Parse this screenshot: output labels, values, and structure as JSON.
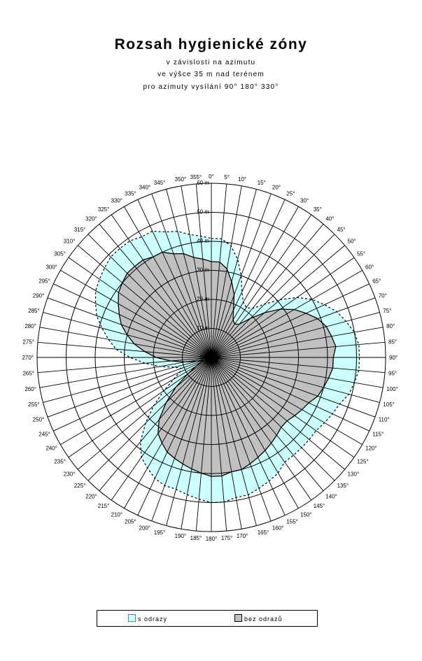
{
  "header": {
    "title": "Rozsah hygienické zóny",
    "subtitle_1": "v závislosti na azimutu",
    "subtitle_2": "ve výšce 35 m nad terénem",
    "subtitle_3": "pro azimuty vysílání 90° 180° 330°"
  },
  "legend": {
    "series_1": "s odrazy",
    "series_2": "bez odrazů"
  },
  "colors": {
    "s_odrazy_fill": "#ccffff",
    "bez_odrazu_fill": "#c0c0c0",
    "lines": "#000000"
  },
  "chart_data": {
    "type": "radar",
    "title": "Rozsah hygienické zóny",
    "radial_ticks": [
      "0 m",
      "10 m",
      "20 m",
      "30 m",
      "40 m",
      "50 m",
      "60 m"
    ],
    "rlim": [
      0,
      60
    ],
    "grid": true,
    "legend_position": "bottom",
    "azimuth_labels": [
      "0°",
      "5°",
      "10°",
      "15°",
      "20°",
      "25°",
      "30°",
      "35°",
      "40°",
      "45°",
      "50°",
      "55°",
      "60°",
      "65°",
      "70°",
      "75°",
      "80°",
      "85°",
      "90°",
      "95°",
      "100°",
      "105°",
      "110°",
      "115°",
      "120°",
      "125°",
      "130°",
      "135°",
      "140°",
      "145°",
      "150°",
      "155°",
      "160°",
      "165°",
      "170°",
      "175°",
      "180°",
      "185°",
      "190°",
      "195°",
      "200°",
      "205°",
      "210°",
      "215°",
      "220°",
      "225°",
      "230°",
      "235°",
      "240°",
      "245°",
      "250°",
      "255°",
      "260°",
      "265°",
      "270°",
      "275°",
      "280°",
      "285°",
      "290°",
      "295°",
      "300°",
      "305°",
      "310°",
      "315°",
      "320°",
      "325°",
      "330°",
      "335°",
      "340°",
      "345°",
      "350°",
      "355°"
    ],
    "azimuths": [
      0,
      5,
      10,
      15,
      20,
      25,
      30,
      35,
      40,
      45,
      50,
      55,
      60,
      65,
      70,
      75,
      80,
      85,
      90,
      95,
      100,
      105,
      110,
      115,
      120,
      125,
      130,
      135,
      140,
      145,
      150,
      155,
      160,
      165,
      170,
      175,
      180,
      185,
      190,
      195,
      200,
      205,
      210,
      215,
      220,
      225,
      230,
      235,
      240,
      245,
      250,
      255,
      260,
      265,
      270,
      275,
      280,
      285,
      290,
      295,
      300,
      305,
      310,
      315,
      320,
      325,
      330,
      335,
      340,
      345,
      350,
      355
    ],
    "series": [
      {
        "name": "s odrazy",
        "values": [
          41,
          41,
          39,
          35,
          30,
          25,
          22,
          21,
          22,
          26,
          31,
          36,
          40,
          43,
          46,
          48,
          50,
          51,
          51,
          51,
          50,
          49,
          47,
          46,
          45,
          44,
          44,
          44,
          44,
          44,
          46,
          47,
          48,
          49,
          49,
          50,
          50,
          49,
          48,
          47,
          47,
          46,
          44,
          42,
          38,
          32,
          26,
          20,
          15,
          12,
          11,
          13,
          18,
          23,
          28,
          33,
          36,
          39,
          42,
          44,
          46,
          47,
          48,
          49,
          49,
          49,
          48,
          48,
          46,
          45,
          43,
          42
        ]
      },
      {
        "name": "bez odrazů",
        "values": [
          33,
          33,
          31,
          27,
          23,
          18,
          15,
          14,
          15,
          19,
          24,
          29,
          33,
          36,
          39,
          41,
          42,
          43,
          42,
          42,
          41,
          40,
          39,
          37,
          36,
          35,
          34,
          34,
          35,
          36,
          37,
          38,
          39,
          40,
          40,
          41,
          41,
          40,
          39,
          38,
          37,
          36,
          34,
          32,
          28,
          22,
          16,
          10,
          6,
          4,
          3,
          5,
          9,
          14,
          19,
          23,
          27,
          30,
          33,
          35,
          37,
          39,
          40,
          41,
          41,
          41,
          40,
          40,
          38,
          37,
          35,
          34
        ]
      }
    ]
  }
}
